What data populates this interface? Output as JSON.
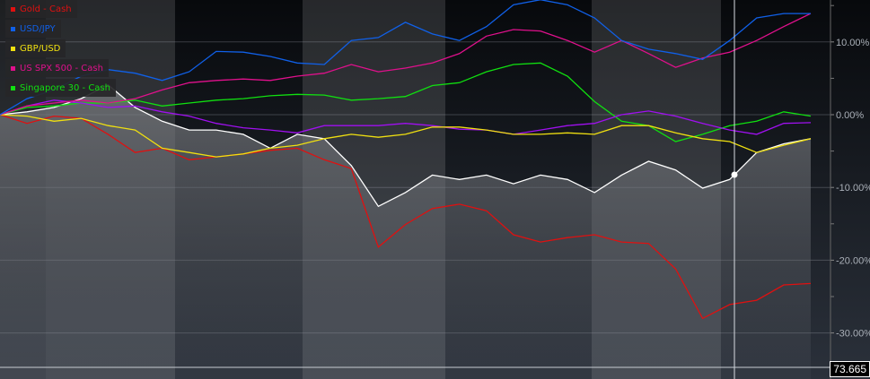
{
  "chart_data": {
    "type": "line",
    "y_axis": {
      "side": "right",
      "ticks": [
        10,
        0,
        -10,
        -20,
        -30
      ],
      "tick_labels": [
        "10.00%",
        "0.00%",
        "-10.00%",
        "-20.00%",
        "-30.00%"
      ],
      "ylim": [
        -33.5,
        15.8
      ]
    },
    "grid": true,
    "legend_position": "top-left",
    "series": [
      {
        "name": "Gold - Cash",
        "color": "#e01010",
        "values": [
          0,
          -1.2,
          -0.2,
          -0.5,
          -2.7,
          -5.2,
          -4.6,
          -6.2,
          -5.8,
          -5.4,
          -4.9,
          -4.6,
          -6.2,
          -7.4,
          -18.2,
          -15.1,
          -12.9,
          -12.3,
          -13.2,
          -16.5,
          -17.5,
          -16.9,
          -16.5,
          -17.5,
          -17.7,
          -21.2,
          -28.0,
          -26.1,
          -25.5,
          -23.4,
          -23.2
        ]
      },
      {
        "name": "USD/JPY",
        "color": "#1060e8",
        "values": [
          0,
          2.2,
          3.4,
          5.3,
          6.2,
          5.7,
          4.7,
          5.9,
          8.7,
          8.6,
          8.0,
          7.1,
          6.9,
          10.2,
          10.6,
          12.7,
          11.1,
          10.2,
          12.1,
          15.1,
          15.8,
          15.1,
          13.3,
          10.2,
          9.0,
          8.4,
          7.6,
          10.2,
          13.3,
          13.9,
          13.9
        ]
      },
      {
        "name": "GBP/USD",
        "color": "#f0e010",
        "values": [
          0,
          -0.2,
          -0.9,
          -0.5,
          -1.5,
          -2.1,
          -4.6,
          -5.2,
          -5.8,
          -5.4,
          -4.6,
          -4.2,
          -3.3,
          -2.7,
          -3.1,
          -2.7,
          -1.7,
          -1.7,
          -2.1,
          -2.7,
          -2.7,
          -2.5,
          -2.7,
          -1.5,
          -1.5,
          -2.5,
          -3.3,
          -3.7,
          -5.2,
          -4.2,
          -3.3
        ]
      },
      {
        "name": "US SPX 500 - Cash",
        "color": "#e0108c",
        "values": [
          0,
          1.2,
          1.6,
          2.0,
          1.6,
          2.2,
          3.4,
          4.4,
          4.7,
          4.9,
          4.7,
          5.3,
          5.7,
          6.9,
          5.9,
          6.4,
          7.1,
          8.4,
          10.8,
          11.7,
          11.5,
          10.2,
          8.6,
          10.2,
          8.4,
          6.5,
          7.8,
          8.6,
          10.2,
          12.1,
          13.9
        ]
      },
      {
        "name": "Singapore 30 - Cash",
        "color": "#10e010",
        "values": [
          0,
          1.0,
          1.2,
          1.6,
          1.6,
          2.0,
          1.2,
          1.6,
          2.0,
          2.2,
          2.6,
          2.8,
          2.7,
          2.0,
          2.2,
          2.5,
          4.0,
          4.4,
          5.9,
          6.9,
          7.1,
          5.3,
          1.8,
          -0.9,
          -1.5,
          -3.7,
          -2.7,
          -1.5,
          -0.9,
          0.4,
          -0.2
        ]
      },
      {
        "color": "#a010f0",
        "values": [
          0,
          1.2,
          2.0,
          1.6,
          1.0,
          1.2,
          0.4,
          -0.2,
          -1.2,
          -1.8,
          -2.1,
          -2.5,
          -1.5,
          -1.5,
          -1.5,
          -1.2,
          -1.5,
          -2.0,
          -2.1,
          -2.7,
          -2.1,
          -1.5,
          -1.2,
          0,
          0.5,
          -0.2,
          -1.2,
          -2.1,
          -2.7,
          -1.2,
          -1.1
        ]
      },
      {
        "color": "#ffffff",
        "filled": true,
        "values": [
          0,
          0.4,
          1.0,
          2.2,
          4.1,
          1.0,
          -0.9,
          -2.1,
          -2.1,
          -2.7,
          -4.6,
          -2.7,
          -3.3,
          -7.0,
          -12.6,
          -10.7,
          -8.3,
          -8.9,
          -8.3,
          -9.5,
          -8.3,
          -8.9,
          -10.7,
          -8.3,
          -6.4,
          -7.6,
          -10.1,
          -8.9,
          -5.2,
          -4.0,
          -3.3
        ]
      }
    ],
    "crosshair_price": "73.665"
  }
}
